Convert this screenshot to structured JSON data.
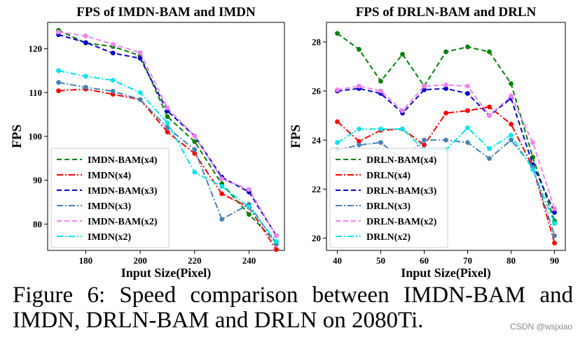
{
  "caption": "Figure 6: Speed comparison between IMDN-BAM and IMDN, DRLN-BAM and DRLN on 2080Ti.",
  "watermark": "CSDN @wsjxiao",
  "chart_data": [
    {
      "type": "line",
      "title": "FPS of IMDN-BAM and IMDN",
      "xlabel": "Input Size(Pixel)",
      "ylabel": "FPS",
      "xlim": [
        166,
        253
      ],
      "ylim": [
        74,
        126
      ],
      "xticks": [
        180,
        200,
        220,
        240
      ],
      "yticks": [
        80,
        90,
        100,
        110,
        120
      ],
      "legend_position": "lower-left",
      "x": [
        170,
        180,
        190,
        200,
        210,
        220,
        230,
        240,
        250
      ],
      "series": [
        {
          "name": "IMDN-BAM(x4)",
          "color": "#008000",
          "dash": "dashed",
          "values": [
            124.2,
            121.3,
            120.5,
            118.4,
            104.5,
            98.8,
            89.2,
            82.2,
            75.8
          ]
        },
        {
          "name": "IMDN(x4)",
          "color": "#ff0000",
          "dash": "dashdot",
          "values": [
            110.4,
            110.8,
            109.6,
            108.4,
            101.0,
            96.1,
            86.9,
            83.8,
            74.2
          ]
        },
        {
          "name": "IMDN-BAM(x3)",
          "color": "#0000cc",
          "dash": "dashed",
          "values": [
            123.2,
            121.4,
            119.0,
            117.8,
            105.8,
            100.1,
            90.7,
            87.3,
            77.4
          ]
        },
        {
          "name": "IMDN(x3)",
          "color": "#4682b4",
          "dash": "dashdot",
          "values": [
            112.3,
            111.2,
            110.3,
            108.4,
            102.0,
            97.0,
            81.1,
            84.5,
            75.4
          ]
        },
        {
          "name": "IMDN-BAM(x2)",
          "color": "#ee82ee",
          "dash": "dashed",
          "values": [
            123.8,
            122.9,
            121.0,
            119.1,
            106.5,
            100.1,
            90.3,
            87.9,
            77.4
          ]
        },
        {
          "name": "IMDN(x2)",
          "color": "#00e5ee",
          "dash": "dashdot",
          "values": [
            115.0,
            113.7,
            112.8,
            110.0,
            103.1,
            91.8,
            88.6,
            83.9,
            76.0
          ]
        }
      ]
    },
    {
      "type": "line",
      "title": "FPS of DRLN-BAM and DRLN",
      "xlabel": "Input Size(Pixel)",
      "ylabel": "FPS",
      "xlim": [
        37.5,
        92.5
      ],
      "ylim": [
        19.5,
        28.8
      ],
      "xticks": [
        40,
        50,
        60,
        70,
        80,
        90
      ],
      "yticks": [
        20,
        22,
        24,
        26,
        28
      ],
      "legend_position": "lower-left",
      "x": [
        40,
        45,
        50,
        55,
        60,
        65,
        70,
        75,
        80,
        85,
        90
      ],
      "series": [
        {
          "name": "DRLN-BAM(x4)",
          "color": "#008000",
          "dash": "dashed",
          "values": [
            28.35,
            27.7,
            26.4,
            27.5,
            26.2,
            27.6,
            27.8,
            27.6,
            26.3,
            23.3,
            20.7
          ]
        },
        {
          "name": "DRLN(x4)",
          "color": "#ff0000",
          "dash": "dashdot",
          "values": [
            24.75,
            23.95,
            24.4,
            24.45,
            23.8,
            25.1,
            25.2,
            25.35,
            24.65,
            22.9,
            19.8
          ]
        },
        {
          "name": "DRLN-BAM(x3)",
          "color": "#0000cc",
          "dash": "dashed",
          "values": [
            26.0,
            26.1,
            25.9,
            25.1,
            26.05,
            26.1,
            25.9,
            25.0,
            25.7,
            23.0,
            21.05
          ]
        },
        {
          "name": "DRLN(x3)",
          "color": "#4682b4",
          "dash": "dashdot",
          "values": [
            23.6,
            23.8,
            23.9,
            23.2,
            24.0,
            24.0,
            23.9,
            23.25,
            24.0,
            22.9,
            20.1
          ]
        },
        {
          "name": "DRLN-BAM(x2)",
          "color": "#ee82ee",
          "dash": "dashed",
          "values": [
            26.05,
            26.2,
            26.0,
            25.2,
            26.2,
            26.25,
            26.2,
            25.0,
            25.8,
            23.9,
            21.2
          ]
        },
        {
          "name": "DRLN(x2)",
          "color": "#00e5ee",
          "dash": "dashdot",
          "values": [
            23.9,
            24.45,
            24.45,
            24.45,
            23.6,
            23.6,
            24.5,
            23.65,
            24.2,
            22.8,
            20.6
          ]
        }
      ]
    }
  ]
}
